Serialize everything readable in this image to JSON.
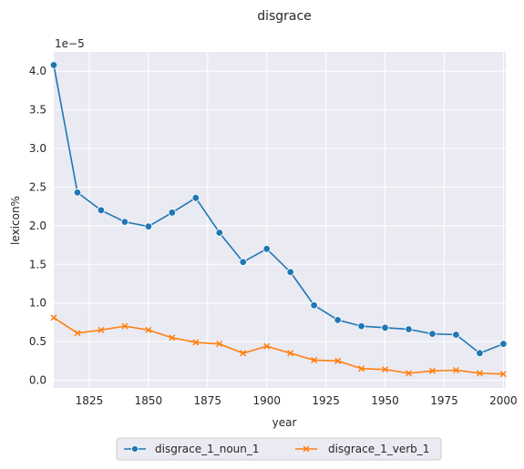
{
  "chart_data": {
    "type": "line",
    "title": "disgrace",
    "xlabel": "year",
    "ylabel": "lexicon%",
    "y_offset_label": "1e−5",
    "xlim": [
      1810,
      2001
    ],
    "ylim": [
      -0.1,
      4.25
    ],
    "x_ticks": [
      1825,
      1850,
      1875,
      1900,
      1925,
      1950,
      1975,
      2000
    ],
    "y_ticks": [
      0.0,
      0.5,
      1.0,
      1.5,
      2.0,
      2.5,
      3.0,
      3.5,
      4.0
    ],
    "y_tick_labels": [
      "0.0",
      "0.5",
      "1.0",
      "1.5",
      "2.0",
      "2.5",
      "3.0",
      "3.5",
      "4.0"
    ],
    "grid": true,
    "legend_position": "bottom-center",
    "x": [
      1810,
      1820,
      1830,
      1840,
      1850,
      1860,
      1870,
      1880,
      1890,
      1900,
      1910,
      1920,
      1930,
      1940,
      1950,
      1960,
      1970,
      1980,
      1990,
      2000
    ],
    "series": [
      {
        "name": "disgrace_1_noun_1",
        "color": "#1f77b4",
        "marker": "circle",
        "values": [
          4.08,
          2.43,
          2.2,
          2.05,
          1.99,
          2.17,
          2.36,
          1.91,
          1.53,
          1.7,
          1.4,
          0.97,
          0.78,
          0.7,
          0.68,
          0.66,
          0.6,
          0.59,
          0.35,
          0.47
        ]
      },
      {
        "name": "disgrace_1_verb_1",
        "color": "#ff7f0e",
        "marker": "x",
        "values": [
          0.81,
          0.61,
          0.65,
          0.7,
          0.65,
          0.55,
          0.49,
          0.47,
          0.35,
          0.44,
          0.35,
          0.26,
          0.25,
          0.15,
          0.14,
          0.09,
          0.12,
          0.13,
          0.09,
          0.08
        ]
      }
    ]
  }
}
